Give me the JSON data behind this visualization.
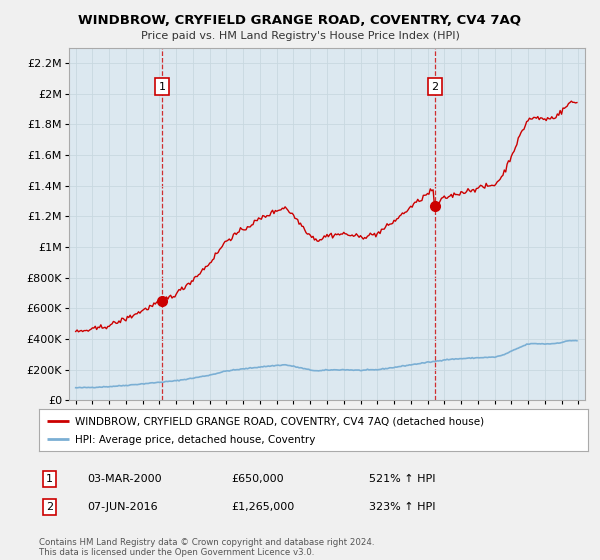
{
  "title": "WINDBROW, CRYFIELD GRANGE ROAD, COVENTRY, CV4 7AQ",
  "subtitle": "Price paid vs. HM Land Registry's House Price Index (HPI)",
  "ylim": [
    0,
    2300000
  ],
  "yticks": [
    0,
    200000,
    400000,
    600000,
    800000,
    1000000,
    1200000,
    1400000,
    1600000,
    1800000,
    2000000,
    2200000
  ],
  "hpi_color": "#7BAFD4",
  "price_color": "#CC0000",
  "sale1_date": 2000.17,
  "sale1_price": 650000,
  "sale2_date": 2016.43,
  "sale2_price": 1265000,
  "legend_line1": "WINDBROW, CRYFIELD GRANGE ROAD, COVENTRY, CV4 7AQ (detached house)",
  "legend_line2": "HPI: Average price, detached house, Coventry",
  "note1_date": "03-MAR-2000",
  "note1_price": "£650,000",
  "note1_hpi": "521% ↑ HPI",
  "note2_date": "07-JUN-2016",
  "note2_price": "£1,265,000",
  "note2_hpi": "323% ↑ HPI",
  "footer": "Contains HM Land Registry data © Crown copyright and database right 2024.\nThis data is licensed under the Open Government Licence v3.0.",
  "bg_color": "#f0f0f0",
  "plot_bg_color": "#dce8f0"
}
